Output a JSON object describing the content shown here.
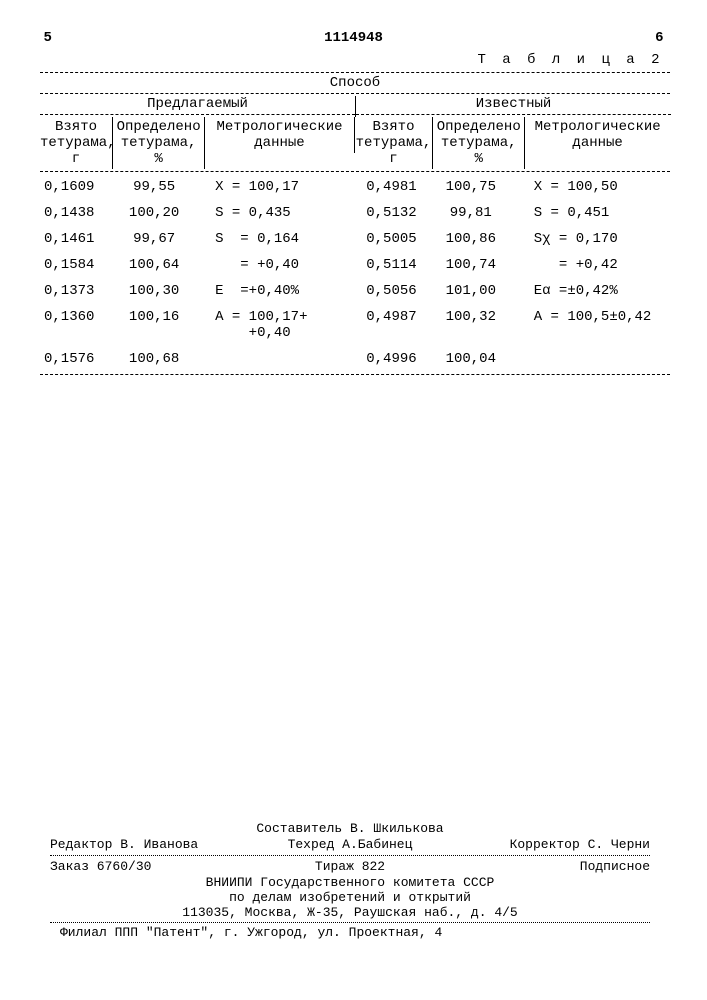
{
  "header": {
    "left_num": "5",
    "patent_no": "1114948",
    "right_num": "6",
    "table_label": "Т а б л и ц а  2"
  },
  "table_headers": {
    "top": "Способ",
    "left_group": "Предлагаемый",
    "right_group": "Известный",
    "c1": "Взято тетурама, г",
    "c2": "Определено тетурама, %",
    "c3": "Метрологические данные",
    "c4": "Взято тетурама, г",
    "c5": "Определено тетурама, %",
    "c6": "Метрологические данные"
  },
  "rows": [
    {
      "d1": "0,1609",
      "d2": "99,55",
      "d3": "X = 100,17",
      "d4": "0,4981",
      "d5": "100,75",
      "d6": "X = 100,50"
    },
    {
      "d1": "0,1438",
      "d2": "100,20",
      "d3": "S = 0,435",
      "d4": "0,5132",
      "d5": "99,81",
      "d6": "S = 0,451"
    },
    {
      "d1": "0,1461",
      "d2": "99,67",
      "d3": "S  = 0,164",
      "d4": "0,5005",
      "d5": "100,86",
      "d6": "Sχ = 0,170"
    },
    {
      "d1": "0,1584",
      "d2": "100,64",
      "d3": "   = +0,40",
      "d4": "0,5114",
      "d5": "100,74",
      "d6": "   = +0,42"
    },
    {
      "d1": "0,1373",
      "d2": "100,30",
      "d3": "E  =+0,40%",
      "d4": "0,5056",
      "d5": "101,00",
      "d6": "Eα =±0,42%"
    },
    {
      "d1": "0,1360",
      "d2": "100,16",
      "d3": "A = 100,17+\n    +0,40",
      "d4": "0,4987",
      "d5": "100,32",
      "d6": "A = 100,5±0,42"
    },
    {
      "d1": "0,1576",
      "d2": "100,68",
      "d3": "",
      "d4": "0,4996",
      "d5": "100,04",
      "d6": ""
    }
  ],
  "footer": {
    "compiler": "Составитель В. Шкилькова",
    "editor": "Редактор В. Иванова",
    "techred": "Техред А.Бабинец",
    "corrector": "Корректор С. Черни",
    "order": "Заказ 6760/30",
    "tirage": "Тираж  822",
    "subscr": "Подписное",
    "org1": "ВНИИПИ Государственного комитета СССР",
    "org2": "по делам изобретений и открытий",
    "addr1": "113035, Москва, Ж-35, Раушская наб., д. 4/5",
    "branch": "Филиал ППП \"Патент\", г. Ужгород, ул. Проектная, 4"
  },
  "colors": {
    "text": "#000000",
    "bg": "#ffffff"
  }
}
